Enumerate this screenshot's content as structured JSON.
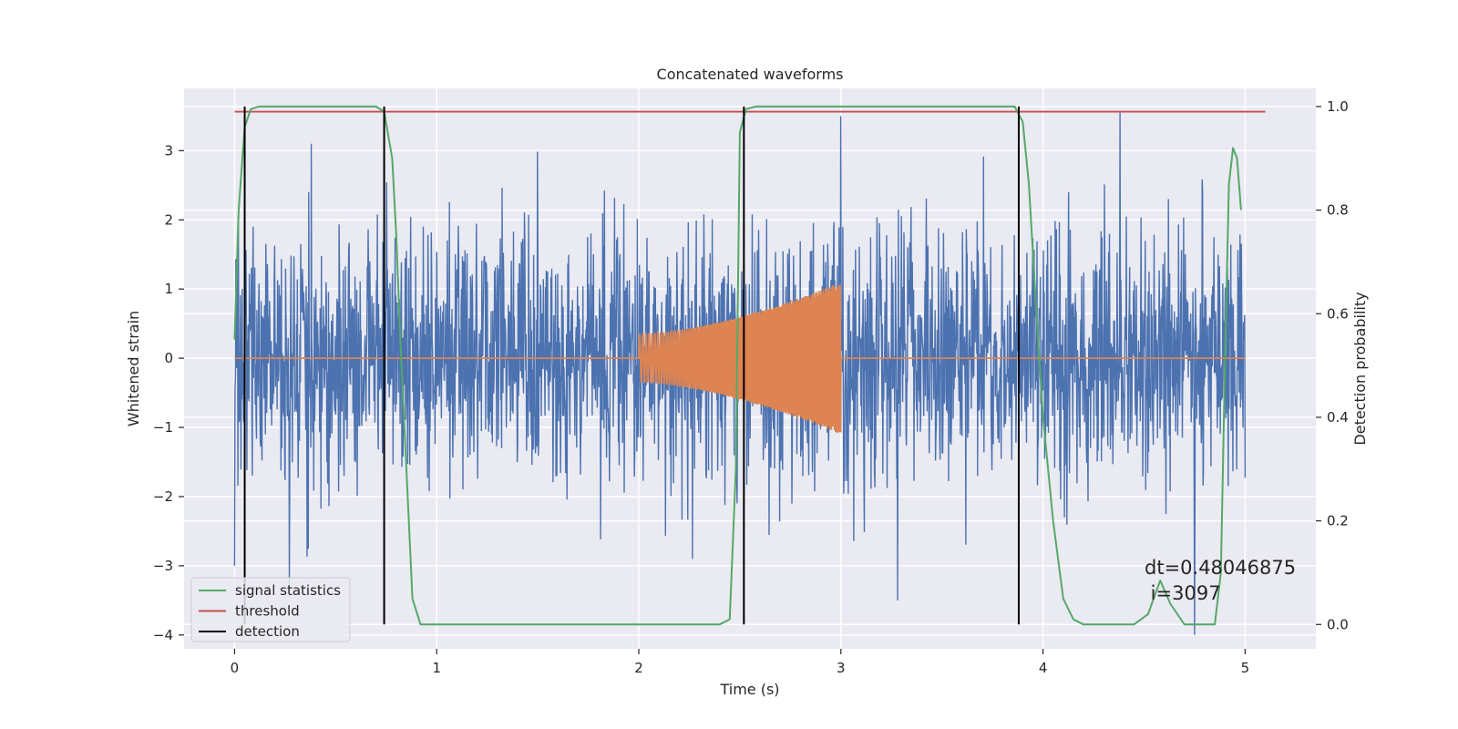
{
  "chart_data": {
    "type": "line",
    "title": "Concatenated waveforms",
    "xlabel": "Time (s)",
    "ylabel": "Whitened strain",
    "y2label": "Detection probability",
    "xlim": [
      -0.25,
      5.35
    ],
    "ylim": [
      -4.2,
      3.9
    ],
    "y2lim": [
      -0.047,
      1.035
    ],
    "xticks": [
      0,
      1,
      2,
      3,
      4,
      5
    ],
    "yticks": [
      -4,
      -3,
      -2,
      -1,
      0,
      1,
      2,
      3
    ],
    "yticklabels": [
      "−4",
      "−3",
      "−2",
      "−1",
      "0",
      "1",
      "2",
      "3"
    ],
    "y2ticks": [
      0.0,
      0.2,
      0.4,
      0.6,
      0.8,
      1.0
    ],
    "y2ticklabels": [
      "0.0",
      "0.2",
      "0.4",
      "0.6",
      "0.8",
      "1.0"
    ],
    "grid": true,
    "legend_position": "lower-left",
    "series": [
      {
        "key": "strain",
        "color": "#4c72b0",
        "axis": "left",
        "x_range": [
          0,
          5
        ],
        "amplitude_std": 0.9,
        "notable_peaks": [
          {
            "x": 0.38,
            "y": 3.1
          },
          {
            "x": 0.27,
            "y": -3.3
          },
          {
            "x": 3.0,
            "y": 3.5
          },
          {
            "x": 4.38,
            "y": 3.55
          },
          {
            "x": 4.75,
            "y": -4.0
          },
          {
            "x": 0.0,
            "y": -3.0
          }
        ]
      },
      {
        "key": "waveform",
        "color": "#dd8452",
        "axis": "left",
        "x_range": [
          0,
          5
        ],
        "chirp_x_range": [
          2.0,
          3.0
        ],
        "chirp_amplitude_start": 0.35,
        "chirp_amplitude_end": 1.1
      },
      {
        "name": "signal statistics",
        "key": "signal",
        "color": "#55a868",
        "axis": "right",
        "x": [
          0.0,
          0.02,
          0.05,
          0.08,
          0.12,
          0.7,
          0.74,
          0.78,
          0.8,
          0.82,
          0.85,
          0.88,
          0.92,
          2.4,
          2.45,
          2.48,
          2.5,
          2.53,
          2.58,
          3.86,
          3.9,
          3.93,
          3.96,
          4.0,
          4.05,
          4.1,
          4.15,
          4.2,
          4.45,
          4.52,
          4.58,
          4.63,
          4.7,
          4.85,
          4.88,
          4.9,
          4.92,
          4.94,
          4.96,
          4.98
        ],
        "y": [
          0.55,
          0.8,
          0.96,
          0.995,
          1.0,
          1.0,
          0.99,
          0.9,
          0.75,
          0.55,
          0.3,
          0.05,
          0.0,
          0.0,
          0.01,
          0.3,
          0.95,
          0.995,
          1.0,
          1.0,
          0.97,
          0.85,
          0.65,
          0.4,
          0.2,
          0.05,
          0.01,
          0.0,
          0.0,
          0.02,
          0.085,
          0.04,
          0.0,
          0.0,
          0.1,
          0.5,
          0.85,
          0.92,
          0.9,
          0.8
        ]
      },
      {
        "name": "threshold",
        "key": "threshold",
        "color": "#c44e52",
        "axis": "right",
        "x": [
          0,
          5.1
        ],
        "y": [
          0.99,
          0.99
        ]
      },
      {
        "name": "detection",
        "key": "detection",
        "color": "#000000",
        "axis": "right",
        "vertical_lines_x": [
          0.05,
          0.74,
          2.52,
          3.88
        ],
        "vertical_y_range": [
          0.0,
          1.0
        ]
      }
    ],
    "annotation": {
      "line1": "dt=0.48046875",
      "line2": " i=3097"
    }
  }
}
